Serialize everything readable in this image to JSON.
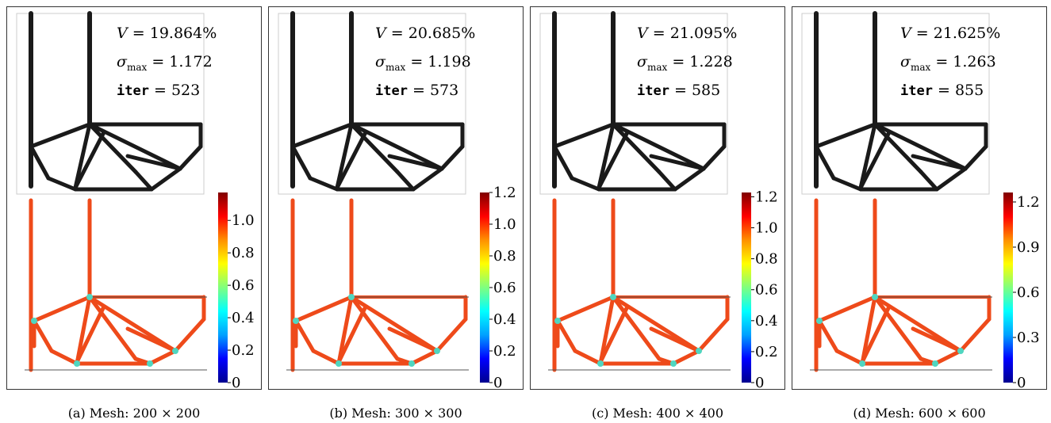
{
  "colormap": [
    "#00008f",
    "#0000ff",
    "#00a0ff",
    "#00ffff",
    "#7fff7f",
    "#ffff00",
    "#ff9000",
    "#ff0000",
    "#800000"
  ],
  "structure_color": "#1a1a1a",
  "stress_color": "#ee4a1a",
  "panels": [
    {
      "V_label": "V",
      "V_value": "= 19.864%",
      "sigma_label": "σ",
      "sigma_sub": "max",
      "sigma_value": "= 1.172",
      "iter_label": "iter",
      "iter_value": "= 523",
      "colorbar_max": 1.172,
      "colorbar_ticks": [
        {
          "label": "1.0",
          "value": 1.0
        },
        {
          "label": "0.8",
          "value": 0.8
        },
        {
          "label": "0.6",
          "value": 0.6
        },
        {
          "label": "0.4",
          "value": 0.4
        },
        {
          "label": "0.2",
          "value": 0.2
        },
        {
          "label": "0",
          "value": 0
        }
      ],
      "caption": "(a) Mesh: 200 × 200"
    },
    {
      "V_label": "V",
      "V_value": "= 20.685%",
      "sigma_label": "σ",
      "sigma_sub": "max",
      "sigma_value": "= 1.198",
      "iter_label": "iter",
      "iter_value": "= 573",
      "colorbar_max": 1.2,
      "colorbar_ticks": [
        {
          "label": "1.2",
          "value": 1.2
        },
        {
          "label": "1.0",
          "value": 1.0
        },
        {
          "label": "0.8",
          "value": 0.8
        },
        {
          "label": "0.6",
          "value": 0.6
        },
        {
          "label": "0.4",
          "value": 0.4
        },
        {
          "label": "0.2",
          "value": 0.2
        },
        {
          "label": "0",
          "value": 0
        }
      ],
      "caption": "(b) Mesh: 300 × 300"
    },
    {
      "V_label": "V",
      "V_value": "= 21.095%",
      "sigma_label": "σ",
      "sigma_sub": "max",
      "sigma_value": "= 1.228",
      "iter_label": "iter",
      "iter_value": "= 585",
      "colorbar_max": 1.228,
      "colorbar_ticks": [
        {
          "label": "1.2",
          "value": 1.2
        },
        {
          "label": "1.0",
          "value": 1.0
        },
        {
          "label": "0.8",
          "value": 0.8
        },
        {
          "label": "0.6",
          "value": 0.6
        },
        {
          "label": "0.4",
          "value": 0.4
        },
        {
          "label": "0.2",
          "value": 0.2
        },
        {
          "label": "0",
          "value": 0
        }
      ],
      "caption": "(c) Mesh: 400 × 400"
    },
    {
      "V_label": "V",
      "V_value": "= 21.625%",
      "sigma_label": "σ",
      "sigma_sub": "max",
      "sigma_value": "= 1.263",
      "iter_label": "iter",
      "iter_value": "= 855",
      "colorbar_max": 1.263,
      "colorbar_ticks": [
        {
          "label": "1.2",
          "value": 1.2
        },
        {
          "label": "0.9",
          "value": 0.9
        },
        {
          "label": "0.6",
          "value": 0.6
        },
        {
          "label": "0.3",
          "value": 0.3
        },
        {
          "label": "0",
          "value": 0
        }
      ],
      "caption": "(d) Mesh: 600 × 600"
    }
  ]
}
